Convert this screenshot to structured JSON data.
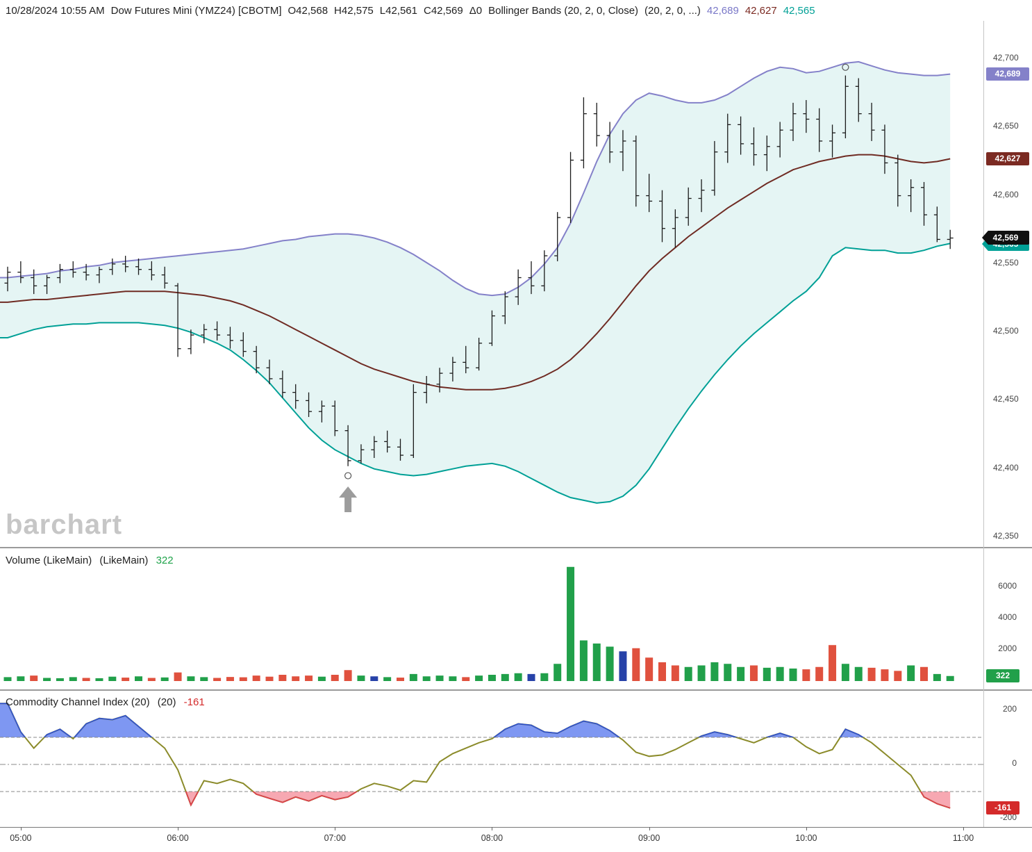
{
  "header": {
    "segments": [
      {
        "text": "10/28/2024 10:55 AM",
        "color": "#222222"
      },
      {
        "text": "Dow Futures Mini (YMZ24) [CBOTM]",
        "color": "#222222"
      },
      {
        "text": "O42,568",
        "color": "#222222"
      },
      {
        "text": "H42,575",
        "color": "#222222"
      },
      {
        "text": "L42,561",
        "color": "#222222"
      },
      {
        "text": "C42,569",
        "color": "#222222"
      },
      {
        "text": "Δ0",
        "color": "#222222"
      },
      {
        "text": "Bollinger Bands (20, 2, 0, Close)",
        "color": "#222222"
      },
      {
        "text": "(20, 2, 0, ...)",
        "color": "#222222"
      },
      {
        "text": "42,689",
        "color": "#7a78c8"
      },
      {
        "text": "42,627",
        "color": "#7b2a22"
      },
      {
        "text": "42,565",
        "color": "#00a096"
      }
    ]
  },
  "watermark": "barchart",
  "main": {
    "badges": {
      "upper": "42,689",
      "middle": "42,627",
      "last": "42,569",
      "lower": "42,565"
    }
  },
  "volume": {
    "title": "Volume (LikeMain)",
    "title2": "(LikeMain)",
    "value": "322",
    "badge": "322"
  },
  "cci": {
    "title": "Commodity Channel Index (20)",
    "title2": "(20)",
    "value": "-161",
    "badge": "-161"
  },
  "time_axis": [
    "05:00",
    "06:00",
    "07:00",
    "08:00",
    "09:00",
    "10:00",
    "11:00"
  ],
  "colors": {
    "band_fill": "rgba(0,155,148,0.10)",
    "upper_band": "#8481c9",
    "middle_band": "#6f2b23",
    "lower_band": "#00a096",
    "ohlc_bar": "#1a1a1a",
    "vol_up": "#21a04a",
    "vol_down": "#e0513e",
    "vol_neutral": "#2742a8",
    "cci_line": "#8b8b2a",
    "cci_fill_high": "#7e97f2",
    "cci_fill_low": "#f7a8b2",
    "cci_edge_high": "#2b4fd8",
    "cci_edge_low": "#e23a4e",
    "grid": "#888888",
    "badge_upper_bg": "#8481c9",
    "badge_middle_bg": "#7b2a22",
    "badge_last_bg": "#101010",
    "badge_lower_bg": "#00a096",
    "badge_volume_bg": "#21a04a",
    "badge_cci_bg": "#d42a2a"
  },
  "chart_data": [
    {
      "type": "ohlc",
      "title": "Dow Futures Mini (YMZ24) [CBOTM]",
      "interval_minutes": 5,
      "x_start": "04:55",
      "x_axis_labels": [
        "05:00",
        "06:00",
        "07:00",
        "08:00",
        "09:00",
        "10:00",
        "11:00"
      ],
      "ylim": [
        42350,
        42700
      ],
      "y_ticks": [
        42700,
        42650,
        42600,
        42550,
        42500,
        42450,
        42400,
        42350
      ],
      "y_tick_labels": [
        "42,700",
        "42,650",
        "42,600",
        "42,550",
        "42,500",
        "42,450",
        "42,400",
        "42,350"
      ],
      "last": {
        "open": 42568,
        "high": 42575,
        "low": 42561,
        "close": 42569,
        "change": 0
      },
      "bars": [
        [
          42536,
          42548,
          42530,
          42544
        ],
        [
          42544,
          42552,
          42536,
          42540
        ],
        [
          42540,
          42546,
          42528,
          42534
        ],
        [
          42534,
          42542,
          42528,
          42540
        ],
        [
          42540,
          42550,
          42536,
          42546
        ],
        [
          42546,
          42552,
          42540,
          42544
        ],
        [
          42544,
          42550,
          42538,
          42542
        ],
        [
          42542,
          42548,
          42536,
          42546
        ],
        [
          42546,
          42554,
          42542,
          42550
        ],
        [
          42550,
          42556,
          42544,
          42548
        ],
        [
          42548,
          42554,
          42542,
          42546
        ],
        [
          42546,
          42552,
          42538,
          42542
        ],
        [
          42542,
          42548,
          42532,
          42536
        ],
        [
          42534,
          42536,
          42482,
          42488
        ],
        [
          42488,
          42502,
          42484,
          42498
        ],
        [
          42498,
          42506,
          42492,
          42502
        ],
        [
          42502,
          42508,
          42494,
          42498
        ],
        [
          42498,
          42504,
          42488,
          42494
        ],
        [
          42494,
          42500,
          42482,
          42486
        ],
        [
          42486,
          42490,
          42470,
          42474
        ],
        [
          42474,
          42480,
          42462,
          42466
        ],
        [
          42466,
          42472,
          42452,
          42456
        ],
        [
          42456,
          42462,
          42444,
          42450
        ],
        [
          42450,
          42456,
          42438,
          42442
        ],
        [
          42442,
          42450,
          42434,
          42446
        ],
        [
          42446,
          42450,
          42424,
          42428
        ],
        [
          42428,
          42432,
          42402,
          42406
        ],
        [
          42406,
          42418,
          42404,
          42414
        ],
        [
          42414,
          42424,
          42408,
          42420
        ],
        [
          42420,
          42428,
          42412,
          42416
        ],
        [
          42416,
          42422,
          42406,
          42410
        ],
        [
          42410,
          42462,
          42408,
          42456
        ],
        [
          42456,
          42468,
          42448,
          42462
        ],
        [
          42462,
          42474,
          42456,
          42470
        ],
        [
          42470,
          42482,
          42464,
          42478
        ],
        [
          42478,
          42490,
          42470,
          42474
        ],
        [
          42474,
          42496,
          42472,
          42492
        ],
        [
          42492,
          42516,
          42490,
          42512
        ],
        [
          42512,
          42530,
          42506,
          42526
        ],
        [
          42526,
          42546,
          42520,
          42540
        ],
        [
          42540,
          42552,
          42528,
          42534
        ],
        [
          42534,
          42560,
          42530,
          42556
        ],
        [
          42556,
          42588,
          42552,
          42584
        ],
        [
          42584,
          42632,
          42580,
          42626
        ],
        [
          42626,
          42672,
          42620,
          42660
        ],
        [
          42660,
          42668,
          42636,
          42644
        ],
        [
          42644,
          42654,
          42624,
          42632
        ],
        [
          42632,
          42648,
          42618,
          42640
        ],
        [
          42640,
          42644,
          42592,
          42600
        ],
        [
          42600,
          42616,
          42588,
          42596
        ],
        [
          42596,
          42604,
          42566,
          42576
        ],
        [
          42576,
          42590,
          42562,
          42584
        ],
        [
          42584,
          42606,
          42578,
          42598
        ],
        [
          42598,
          42612,
          42588,
          42604
        ],
        [
          42604,
          42640,
          42600,
          42632
        ],
        [
          42632,
          42660,
          42624,
          42652
        ],
        [
          42652,
          42658,
          42630,
          42638
        ],
        [
          42638,
          42650,
          42622,
          42630
        ],
        [
          42630,
          42644,
          42618,
          42636
        ],
        [
          42636,
          42654,
          42628,
          42648
        ],
        [
          42648,
          42668,
          42640,
          42660
        ],
        [
          42660,
          42670,
          42646,
          42656
        ],
        [
          42656,
          42664,
          42632,
          42640
        ],
        [
          42640,
          42652,
          42628,
          42646
        ],
        [
          42646,
          42688,
          42642,
          42680
        ],
        [
          42680,
          42686,
          42654,
          42660
        ],
        [
          42660,
          42668,
          42640,
          42648
        ],
        [
          42648,
          42652,
          42616,
          42624
        ],
        [
          42624,
          42630,
          42592,
          42600
        ],
        [
          42600,
          42612,
          42588,
          42606
        ],
        [
          42606,
          42610,
          42578,
          42586
        ],
        [
          42586,
          42592,
          42566,
          42568
        ],
        [
          42568,
          42575,
          42561,
          42569
        ]
      ],
      "overlays": {
        "bollinger": {
          "period": 20,
          "stddev": 2,
          "upper": [
            42540,
            42541,
            42542,
            42543,
            42545,
            42546,
            42548,
            42549,
            42551,
            42552,
            42553,
            42554,
            42555,
            42556,
            42557,
            42558,
            42559,
            42560,
            42561,
            42563,
            42565,
            42567,
            42568,
            42570,
            42571,
            42572,
            42572,
            42571,
            42569,
            42566,
            42562,
            42557,
            42551,
            42545,
            42538,
            42532,
            42528,
            42527,
            42528,
            42533,
            42540,
            42550,
            42562,
            42580,
            42602,
            42625,
            42645,
            42660,
            42670,
            42675,
            42673,
            42670,
            42668,
            42668,
            42670,
            42674,
            42680,
            42686,
            42691,
            42694,
            42693,
            42690,
            42691,
            42694,
            42697,
            42698,
            42695,
            42692,
            42690,
            42689,
            42688,
            42688,
            42689
          ],
          "middle": [
            42522,
            42523,
            42524,
            42524,
            42525,
            42526,
            42527,
            42528,
            42529,
            42530,
            42530,
            42530,
            42530,
            42529,
            42528,
            42527,
            42525,
            42523,
            42520,
            42516,
            42512,
            42507,
            42502,
            42497,
            42492,
            42487,
            42482,
            42477,
            42473,
            42470,
            42467,
            42464,
            42462,
            42460,
            42459,
            42458,
            42458,
            42458,
            42459,
            42461,
            42464,
            42468,
            42473,
            42480,
            42489,
            42499,
            42510,
            42522,
            42534,
            42545,
            42554,
            42562,
            42570,
            42577,
            42584,
            42591,
            42597,
            42603,
            42609,
            42614,
            42619,
            42622,
            42625,
            42627,
            42629,
            42630,
            42630,
            42629,
            42627,
            42625,
            42624,
            42625,
            42627
          ],
          "lower": [
            42496,
            42499,
            42502,
            42504,
            42505,
            42506,
            42506,
            42507,
            42507,
            42507,
            42507,
            42506,
            42505,
            42503,
            42500,
            42496,
            42492,
            42487,
            42480,
            42472,
            42463,
            42452,
            42441,
            42430,
            42421,
            42414,
            42409,
            42404,
            42400,
            42398,
            42396,
            42395,
            42396,
            42398,
            42400,
            42402,
            42403,
            42404,
            42402,
            42398,
            42393,
            42388,
            42383,
            42379,
            42377,
            42375,
            42376,
            42380,
            42388,
            42400,
            42415,
            42430,
            42444,
            42457,
            42469,
            42480,
            42490,
            42499,
            42507,
            42515,
            42523,
            42530,
            42540,
            42556,
            42562,
            42561,
            42560,
            42560,
            42558,
            42558,
            42560,
            42563,
            42565
          ]
        }
      },
      "annotations": {
        "low_marker_bar": 26,
        "high_marker_bar": 64,
        "up_arrow_bar": 26
      }
    },
    {
      "type": "bar",
      "name": "Volume (LikeMain)",
      "last_value": 322,
      "ylim": [
        0,
        7300
      ],
      "y_ticks": [
        6000,
        4000,
        2000
      ],
      "values": [
        250,
        300,
        350,
        200,
        180,
        250,
        200,
        180,
        280,
        220,
        300,
        200,
        230,
        550,
        300,
        250,
        200,
        260,
        240,
        350,
        280,
        400,
        300,
        350,
        280,
        400,
        700,
        350,
        300,
        250,
        220,
        450,
        300,
        350,
        300,
        250,
        350,
        400,
        450,
        500,
        450,
        500,
        1100,
        7300,
        2600,
        2400,
        2200,
        1900,
        2100,
        1500,
        1200,
        1000,
        900,
        1000,
        1200,
        1100,
        900,
        1000,
        850,
        900,
        800,
        750,
        900,
        2300,
        1100,
        900,
        850,
        750,
        650,
        1000,
        900,
        450,
        322
      ],
      "colors": [
        "g",
        "g",
        "r",
        "g",
        "g",
        "g",
        "r",
        "g",
        "g",
        "r",
        "g",
        "r",
        "g",
        "r",
        "g",
        "g",
        "r",
        "r",
        "r",
        "r",
        "r",
        "r",
        "r",
        "r",
        "g",
        "r",
        "r",
        "g",
        "b",
        "g",
        "r",
        "g",
        "g",
        "g",
        "g",
        "r",
        "g",
        "g",
        "g",
        "g",
        "b",
        "g",
        "g",
        "g",
        "g",
        "g",
        "g",
        "b",
        "r",
        "r",
        "r",
        "r",
        "g",
        "g",
        "g",
        "g",
        "g",
        "r",
        "g",
        "g",
        "g",
        "r",
        "r",
        "r",
        "g",
        "g",
        "r",
        "r",
        "r",
        "g",
        "r",
        "g",
        "g"
      ]
    },
    {
      "type": "line",
      "name": "Commodity Channel Index (20)",
      "last_value": -161,
      "ylim": [
        -200,
        200
      ],
      "y_ticks": [
        200,
        0,
        -200
      ],
      "thresholds": {
        "upper": 100,
        "mid": 0,
        "lower": -100
      },
      "values": [
        225,
        120,
        60,
        110,
        130,
        95,
        150,
        170,
        165,
        180,
        140,
        100,
        60,
        -20,
        -150,
        -60,
        -70,
        -55,
        -70,
        -110,
        -125,
        -140,
        -120,
        -135,
        -115,
        -130,
        -120,
        -90,
        -70,
        -80,
        -95,
        -60,
        -65,
        10,
        40,
        60,
        80,
        95,
        130,
        150,
        145,
        120,
        115,
        140,
        160,
        150,
        125,
        90,
        45,
        30,
        35,
        55,
        80,
        105,
        120,
        110,
        95,
        80,
        100,
        115,
        100,
        65,
        40,
        55,
        130,
        110,
        80,
        40,
        0,
        -40,
        -120,
        -145,
        -161
      ]
    }
  ]
}
